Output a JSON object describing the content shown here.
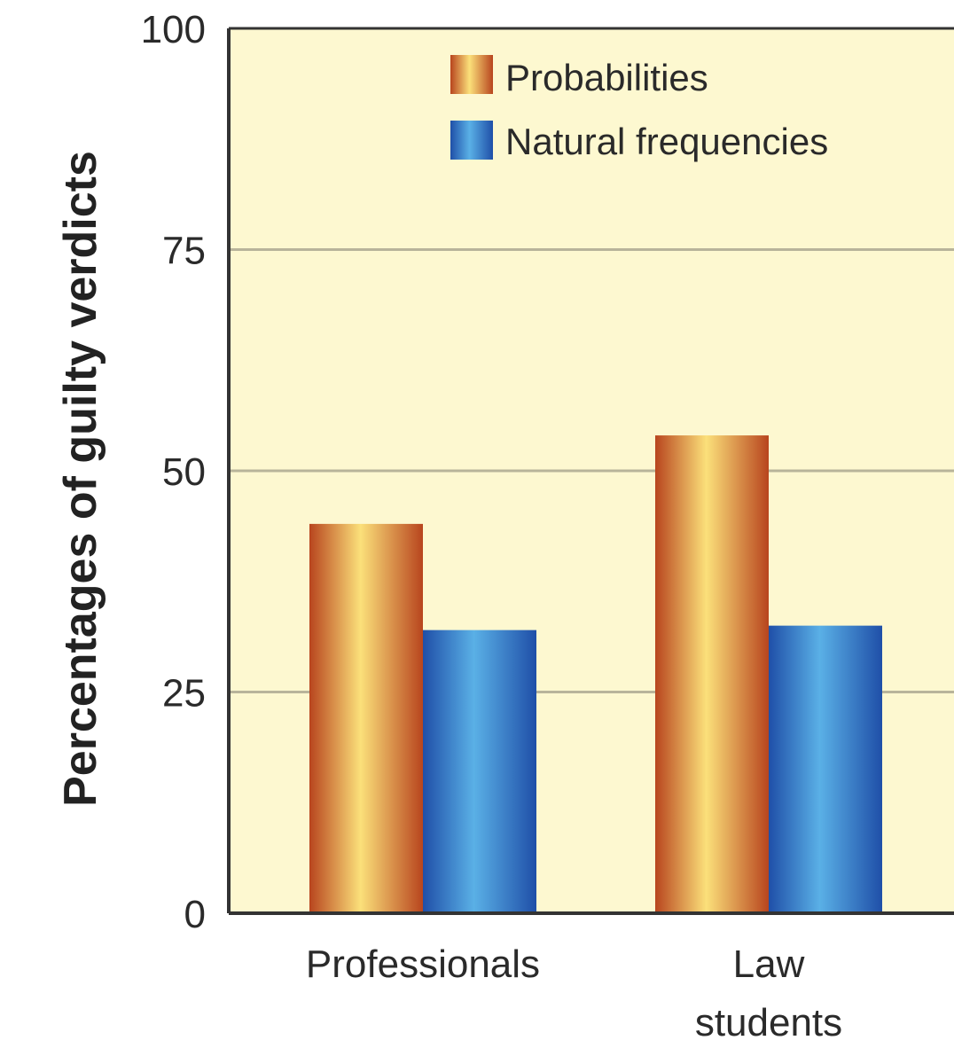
{
  "chart_data": {
    "type": "bar",
    "categories": [
      [
        "Professionals"
      ],
      [
        "Law",
        "students"
      ]
    ],
    "series": [
      {
        "name": "Probabilities",
        "values": [
          44,
          54
        ]
      },
      {
        "name": "Natural frequencies",
        "values": [
          32,
          32.5
        ]
      }
    ],
    "xlabel": "",
    "ylabel": "Percentages of guilty verdicts",
    "ylim": [
      0,
      100
    ],
    "yticks": [
      0,
      25,
      50,
      75,
      100
    ],
    "grid": true,
    "legend": "top-center",
    "colors": {
      "plot_background": "#fdf8d0",
      "grid": "#b8b49a",
      "axis": "#333333",
      "probabilities_dark": "#b8451e",
      "probabilities_light": "#fbe07a",
      "natural_frequencies_dark": "#1f4fa8",
      "natural_frequencies_light": "#5ab0e6"
    }
  }
}
